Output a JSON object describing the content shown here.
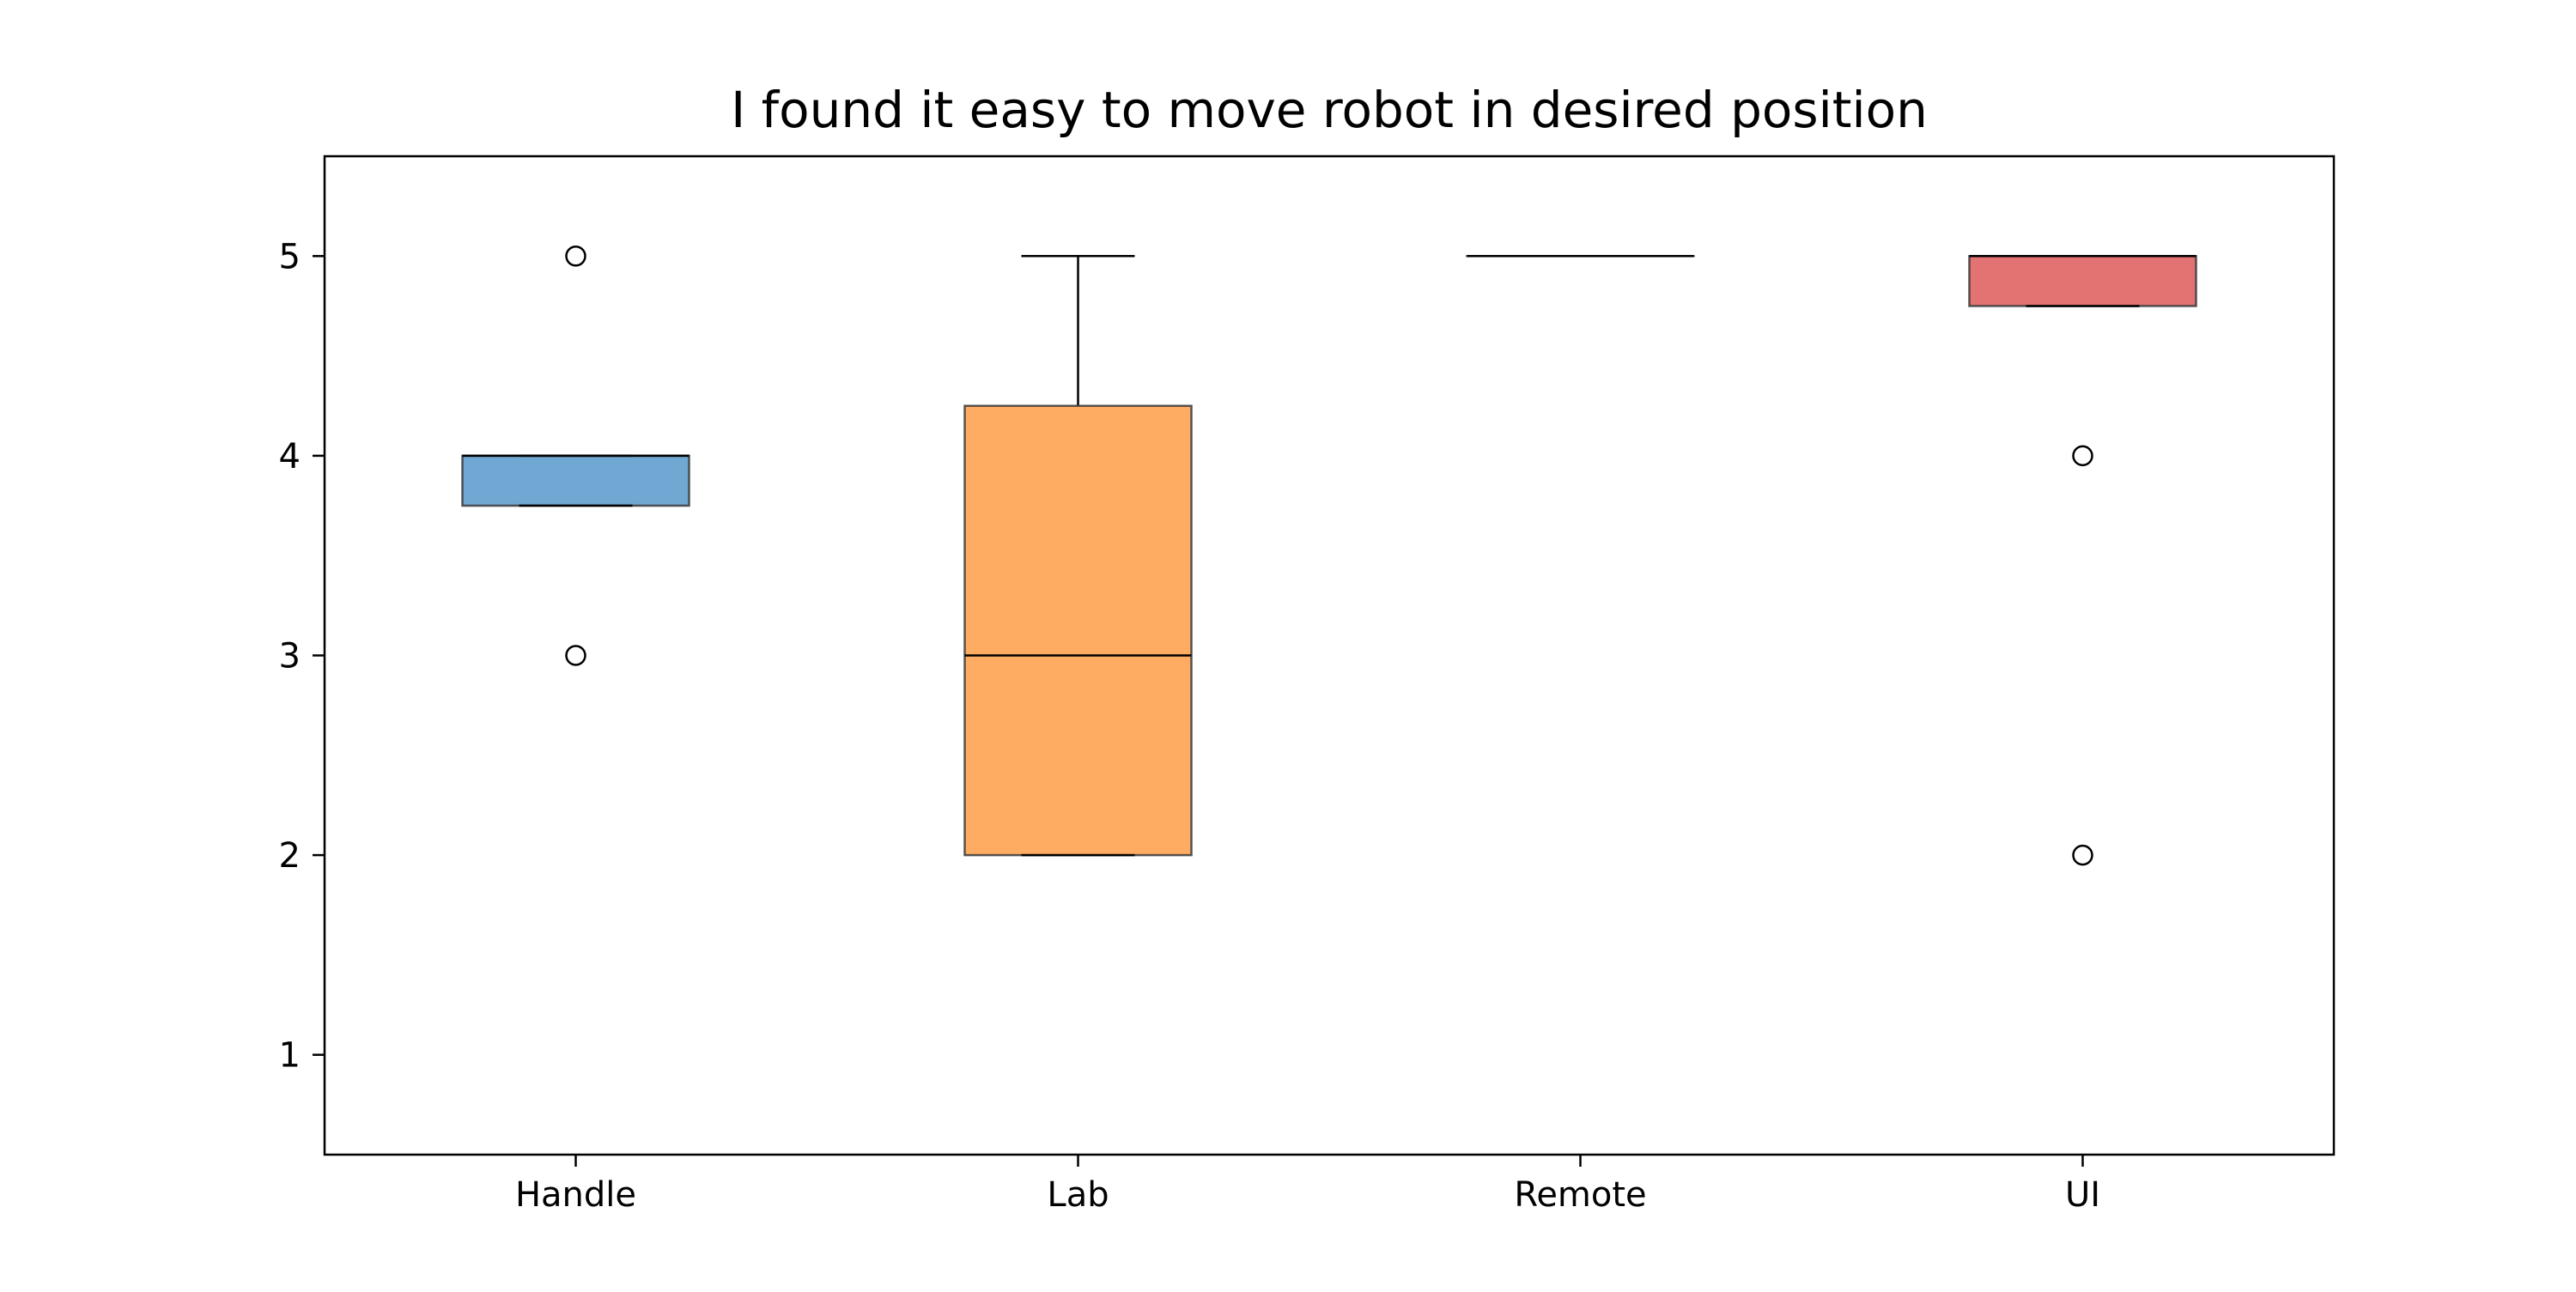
{
  "chart_data": {
    "type": "box",
    "title": "I found it easy to move robot in desired position",
    "xlabel": "",
    "ylabel": "",
    "categories": [
      "Handle",
      "Lab",
      "Remote",
      "UI"
    ],
    "ylim": [
      0.5,
      5.5
    ],
    "yticks": [
      1,
      2,
      3,
      4,
      5
    ],
    "ytick_labels": [
      "1",
      "2",
      "3",
      "4",
      "5"
    ],
    "grid": false,
    "legend": "none",
    "boxes": [
      {
        "category": "Handle",
        "whisker_low": 3.75,
        "q1": 3.75,
        "median": 4,
        "q3": 4,
        "whisker_high": 4,
        "outliers": [
          5,
          3
        ],
        "color": "#6fa8d3"
      },
      {
        "category": "Lab",
        "whisker_low": 2,
        "q1": 2,
        "median": 3,
        "q3": 4.25,
        "whisker_high": 5,
        "outliers": [],
        "color": "#ffac63"
      },
      {
        "category": "Remote",
        "whisker_low": 5,
        "q1": 5,
        "median": 5,
        "q3": 5,
        "whisker_high": 5,
        "outliers": [],
        "color": "#5fb85f"
      },
      {
        "category": "UI",
        "whisker_low": 4.75,
        "q1": 4.75,
        "median": 5,
        "q3": 5,
        "whisker_high": 5,
        "outliers": [
          4,
          2
        ],
        "color": "#e37373"
      }
    ]
  }
}
